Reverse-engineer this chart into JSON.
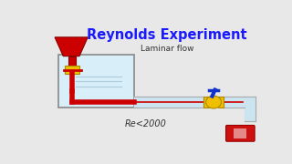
{
  "title": "Reynolds Experiment",
  "title_color": "#1a1aff",
  "bg_color": "#e8e8e8",
  "label_laminar": "Laminar flow",
  "label_re": "Re<2000",
  "funnel_color": "#cc0000",
  "tank_color": "#d8eef8",
  "tank_border": "#888888",
  "pipe_color": "#cce4f0",
  "pipe_border": "#aaaaaa",
  "valve_color": "#f0c000",
  "valve_handle_color": "#1133cc",
  "neck_valve_color": "#d4a800",
  "red_btn_color": "#cc1111",
  "white": "#ffffff"
}
